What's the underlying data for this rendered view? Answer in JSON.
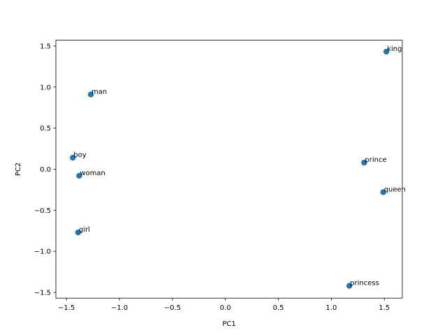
{
  "chart_data": {
    "type": "scatter",
    "title": "",
    "xlabel": "PC1",
    "ylabel": "PC2",
    "xlim": [
      -1.6,
      1.67
    ],
    "ylim": [
      -1.57,
      1.57
    ],
    "xticks": [
      -1.5,
      -1.0,
      -0.5,
      0.0,
      0.5,
      1.0,
      1.5
    ],
    "xtick_labels": [
      "−1.5",
      "−1.0",
      "−0.5",
      "0.0",
      "0.5",
      "1.0",
      "1.5"
    ],
    "yticks": [
      -1.5,
      -1.0,
      -0.5,
      0.0,
      0.5,
      1.0,
      1.5
    ],
    "ytick_labels": [
      "−1.5",
      "−1.0",
      "−0.5",
      "0.0",
      "0.5",
      "1.0",
      "1.5"
    ],
    "grid": false,
    "marker_color": "#1f77b4",
    "points": [
      {
        "label": "king",
        "x": 1.52,
        "y": 1.43
      },
      {
        "label": "man",
        "x": -1.27,
        "y": 0.91
      },
      {
        "label": "boy",
        "x": -1.44,
        "y": 0.14
      },
      {
        "label": "prince",
        "x": 1.31,
        "y": 0.08
      },
      {
        "label": "woman",
        "x": -1.38,
        "y": -0.08
      },
      {
        "label": "queen",
        "x": 1.49,
        "y": -0.28
      },
      {
        "label": "girl",
        "x": -1.39,
        "y": -0.77
      },
      {
        "label": "princess",
        "x": 1.17,
        "y": -1.42
      }
    ]
  }
}
